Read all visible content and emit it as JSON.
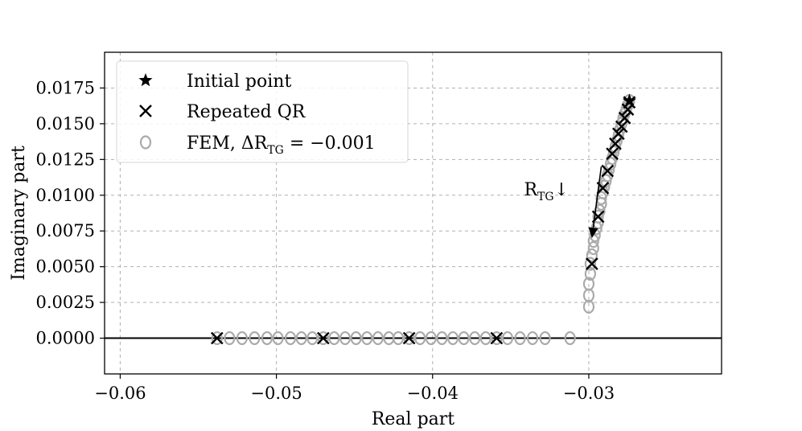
{
  "chart_data": {
    "type": "scatter",
    "xlabel": "Real part",
    "ylabel": "Imaginary part",
    "xlim": [
      -0.061,
      -0.0215
    ],
    "ylim": [
      -0.0025,
      0.02
    ],
    "x_ticks": [
      -0.06,
      -0.05,
      -0.04,
      -0.03
    ],
    "x_tick_labels": [
      "−0.06",
      "−0.05",
      "−0.04",
      "−0.03"
    ],
    "y_ticks": [
      0.0,
      0.0025,
      0.005,
      0.0075,
      0.01,
      0.0125,
      0.015,
      0.0175
    ],
    "y_tick_labels": [
      "0.0000",
      "0.0025",
      "0.0050",
      "0.0075",
      "0.0100",
      "0.0125",
      "0.0150",
      "0.0175"
    ],
    "grid": true,
    "legend_position": "top-left",
    "zero_line": true,
    "colors": {
      "fem": "#aaaaaa",
      "qr": "#000000",
      "initial": "#000000"
    },
    "annotation": {
      "label_main": "R",
      "label_sub": "TG",
      "label_arrow": "↓",
      "arrow_from": [
        -0.0292,
        0.012
      ],
      "arrow_to": [
        -0.0298,
        0.007
      ]
    },
    "series": [
      {
        "name": "Initial point",
        "marker": "star",
        "points": [
          [
            -0.0274,
            0.0166
          ]
        ]
      },
      {
        "name": "Repeated QR",
        "marker": "x",
        "points": [
          [
            -0.0538,
            0.0
          ],
          [
            -0.047,
            0.0
          ],
          [
            -0.0415,
            0.0
          ],
          [
            -0.0359,
            0.0
          ],
          [
            -0.0298,
            0.0052
          ],
          [
            -0.0294,
            0.0085
          ],
          [
            -0.0291,
            0.0105
          ],
          [
            -0.0288,
            0.0117
          ],
          [
            -0.0285,
            0.0129
          ],
          [
            -0.0283,
            0.0136
          ],
          [
            -0.0281,
            0.0143
          ],
          [
            -0.0279,
            0.0148
          ],
          [
            -0.0277,
            0.0154
          ],
          [
            -0.0275,
            0.016
          ],
          [
            -0.0274,
            0.0165
          ]
        ]
      },
      {
        "name": "FEM, ΔR_TG = −0.001",
        "marker": "o",
        "legend_main": "FEM, ΔR",
        "legend_sub": "TG",
        "legend_tail": " = −0.001",
        "points": [
          [
            -0.0538,
            0.0
          ],
          [
            -0.053,
            0.0
          ],
          [
            -0.0522,
            0.0
          ],
          [
            -0.0514,
            0.0
          ],
          [
            -0.0506,
            0.0
          ],
          [
            -0.0499,
            0.0
          ],
          [
            -0.0491,
            0.0
          ],
          [
            -0.0484,
            0.0
          ],
          [
            -0.0477,
            0.0
          ],
          [
            -0.047,
            0.0
          ],
          [
            -0.0463,
            0.0
          ],
          [
            -0.0456,
            0.0
          ],
          [
            -0.0449,
            0.0
          ],
          [
            -0.0442,
            0.0
          ],
          [
            -0.0435,
            0.0
          ],
          [
            -0.0428,
            0.0
          ],
          [
            -0.0422,
            0.0
          ],
          [
            -0.0415,
            0.0
          ],
          [
            -0.0408,
            0.0
          ],
          [
            -0.0401,
            0.0
          ],
          [
            -0.0394,
            0.0
          ],
          [
            -0.0387,
            0.0
          ],
          [
            -0.038,
            0.0
          ],
          [
            -0.0373,
            0.0
          ],
          [
            -0.0366,
            0.0
          ],
          [
            -0.0359,
            0.0
          ],
          [
            -0.0352,
            0.0
          ],
          [
            -0.0344,
            0.0
          ],
          [
            -0.0336,
            0.0
          ],
          [
            -0.0328,
            0.0
          ],
          [
            -0.0312,
            0.0
          ],
          [
            -0.03,
            0.0022
          ],
          [
            -0.03,
            0.003
          ],
          [
            -0.03,
            0.0038
          ],
          [
            -0.0299,
            0.0045
          ],
          [
            -0.0299,
            0.0052
          ],
          [
            -0.0298,
            0.0058
          ],
          [
            -0.0297,
            0.0063
          ],
          [
            -0.0297,
            0.0068
          ],
          [
            -0.0296,
            0.0072
          ],
          [
            -0.0295,
            0.0077
          ],
          [
            -0.0294,
            0.0081
          ],
          [
            -0.0294,
            0.0085
          ],
          [
            -0.0293,
            0.0089
          ],
          [
            -0.0292,
            0.0094
          ],
          [
            -0.0292,
            0.0098
          ],
          [
            -0.0291,
            0.0102
          ],
          [
            -0.029,
            0.0106
          ],
          [
            -0.0289,
            0.011
          ],
          [
            -0.0288,
            0.0114
          ],
          [
            -0.0287,
            0.0118
          ],
          [
            -0.0286,
            0.0122
          ],
          [
            -0.0285,
            0.0126
          ],
          [
            -0.0284,
            0.013
          ],
          [
            -0.0283,
            0.0134
          ],
          [
            -0.0282,
            0.0138
          ],
          [
            -0.0281,
            0.0142
          ],
          [
            -0.028,
            0.0146
          ],
          [
            -0.0279,
            0.015
          ],
          [
            -0.0278,
            0.0154
          ],
          [
            -0.0277,
            0.0157
          ],
          [
            -0.0276,
            0.016
          ],
          [
            -0.0275,
            0.0163
          ],
          [
            -0.0274,
            0.0166
          ]
        ]
      }
    ]
  }
}
